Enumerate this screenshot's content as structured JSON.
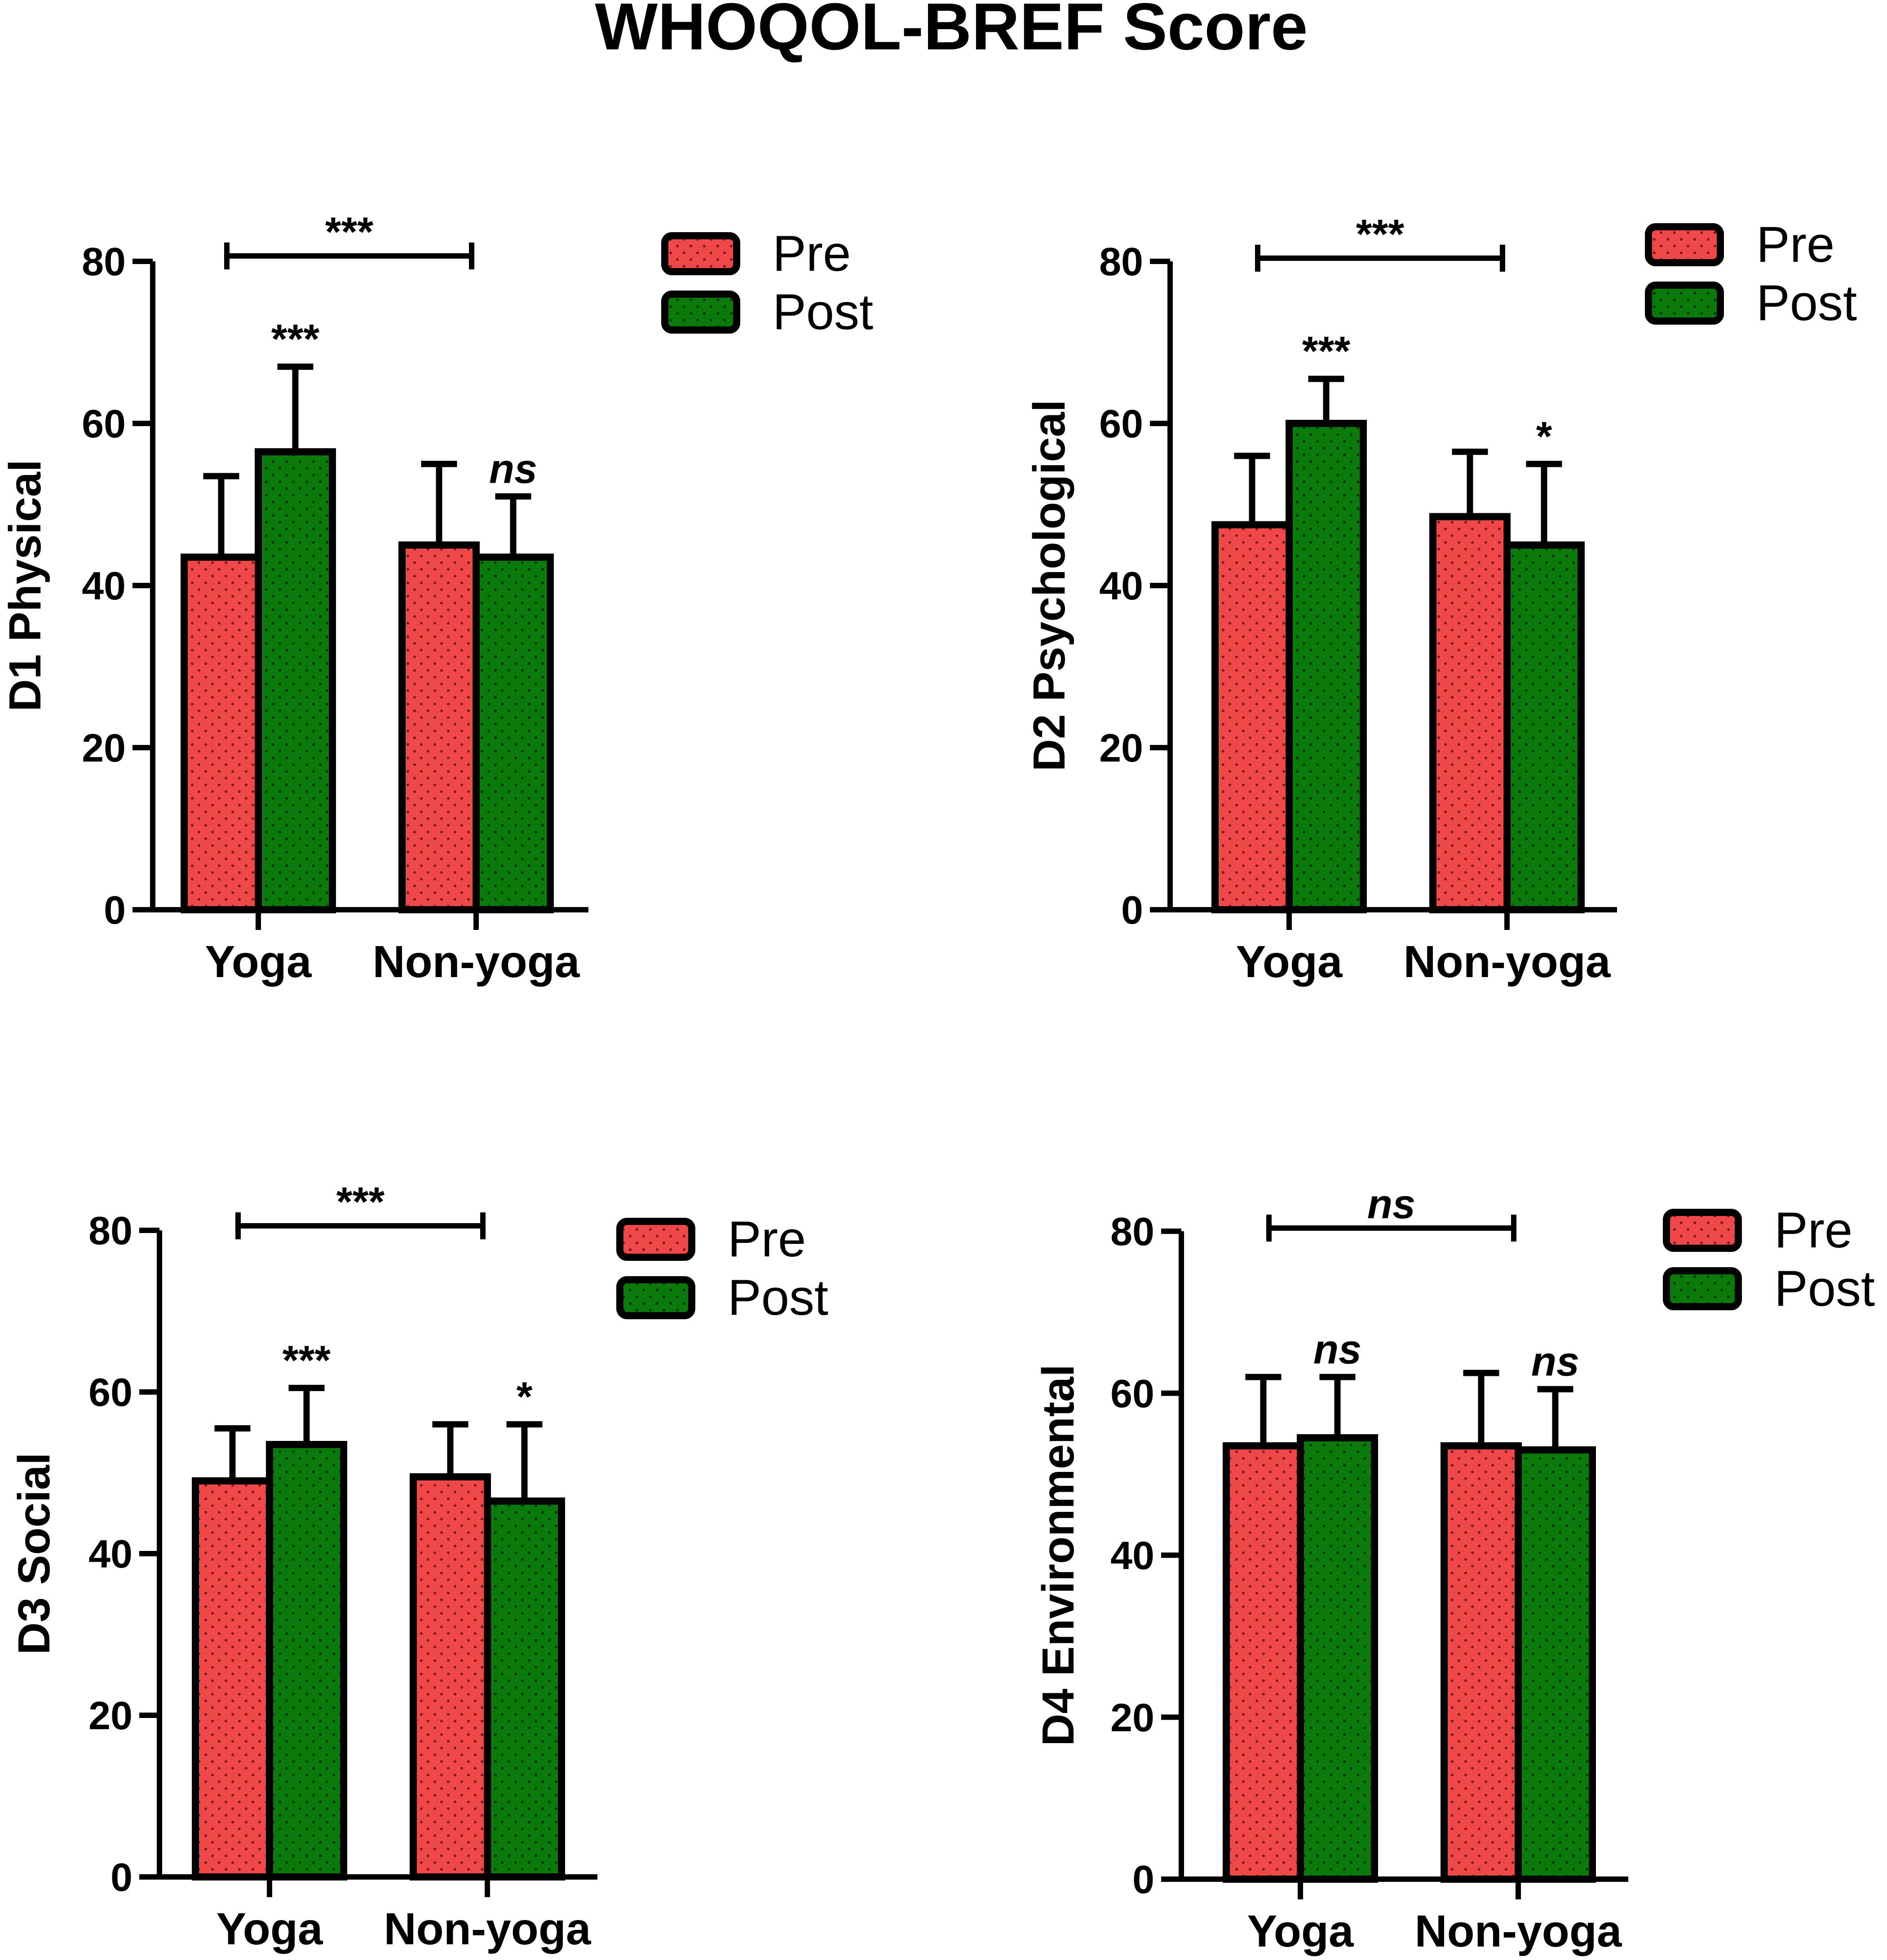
{
  "page": {
    "title": "WHOQOL-BREF Score"
  },
  "colors": {
    "pre": "#f04848",
    "post": "#0a7a0a",
    "outline": "#000000"
  },
  "legend": {
    "pre_label": "Pre",
    "post_label": "Post"
  },
  "chart_data": [
    {
      "type": "bar",
      "title": "",
      "xlabel": "",
      "ylabel": "D1 Physical",
      "ylim": [
        0,
        80
      ],
      "yticks": [
        "0",
        "20",
        "40",
        "60",
        "80"
      ],
      "categories": [
        "Yoga",
        "Non-yoga"
      ],
      "series": [
        {
          "name": "Pre",
          "values": [
            43.5,
            45
          ],
          "errors": [
            10,
            10
          ]
        },
        {
          "name": "Post",
          "values": [
            56.5,
            43.5
          ],
          "errors": [
            10.5,
            7.5
          ]
        }
      ],
      "post_annotations": [
        "***",
        "ns"
      ],
      "bracket_annotation": "***",
      "legend_position": "top-right"
    },
    {
      "type": "bar",
      "title": "",
      "xlabel": "",
      "ylabel": "D2 Psychological",
      "ylim": [
        0,
        80
      ],
      "yticks": [
        "0",
        "20",
        "40",
        "60",
        "80"
      ],
      "categories": [
        "Yoga",
        "Non-yoga"
      ],
      "series": [
        {
          "name": "Pre",
          "values": [
            47.5,
            48.5
          ],
          "errors": [
            8.5,
            8
          ]
        },
        {
          "name": "Post",
          "values": [
            60,
            45
          ],
          "errors": [
            5.5,
            10
          ]
        }
      ],
      "post_annotations": [
        "***",
        "*"
      ],
      "bracket_annotation": "***",
      "legend_position": "top-right"
    },
    {
      "type": "bar",
      "title": "",
      "xlabel": "",
      "ylabel": "D3 Social",
      "ylim": [
        0,
        80
      ],
      "yticks": [
        "0",
        "20",
        "40",
        "60",
        "80"
      ],
      "categories": [
        "Yoga",
        "Non-yoga"
      ],
      "series": [
        {
          "name": "Pre",
          "values": [
            49,
            49.5
          ],
          "errors": [
            6.5,
            6.5
          ]
        },
        {
          "name": "Post",
          "values": [
            53.5,
            46.5
          ],
          "errors": [
            7,
            9.5
          ]
        }
      ],
      "post_annotations": [
        "***",
        "*"
      ],
      "bracket_annotation": "***",
      "legend_position": "top-right"
    },
    {
      "type": "bar",
      "title": "",
      "xlabel": "",
      "ylabel": "D4 Environmental",
      "ylim": [
        0,
        80
      ],
      "yticks": [
        "0",
        "20",
        "40",
        "60",
        "80"
      ],
      "categories": [
        "Yoga",
        "Non-yoga"
      ],
      "series": [
        {
          "name": "Pre",
          "values": [
            53.5,
            53.5
          ],
          "errors": [
            8.5,
            9
          ]
        },
        {
          "name": "Post",
          "values": [
            54.5,
            53
          ],
          "errors": [
            7.5,
            7.5
          ]
        }
      ],
      "post_annotations": [
        "ns",
        "ns"
      ],
      "bracket_annotation": "ns",
      "legend_position": "top-right"
    }
  ]
}
